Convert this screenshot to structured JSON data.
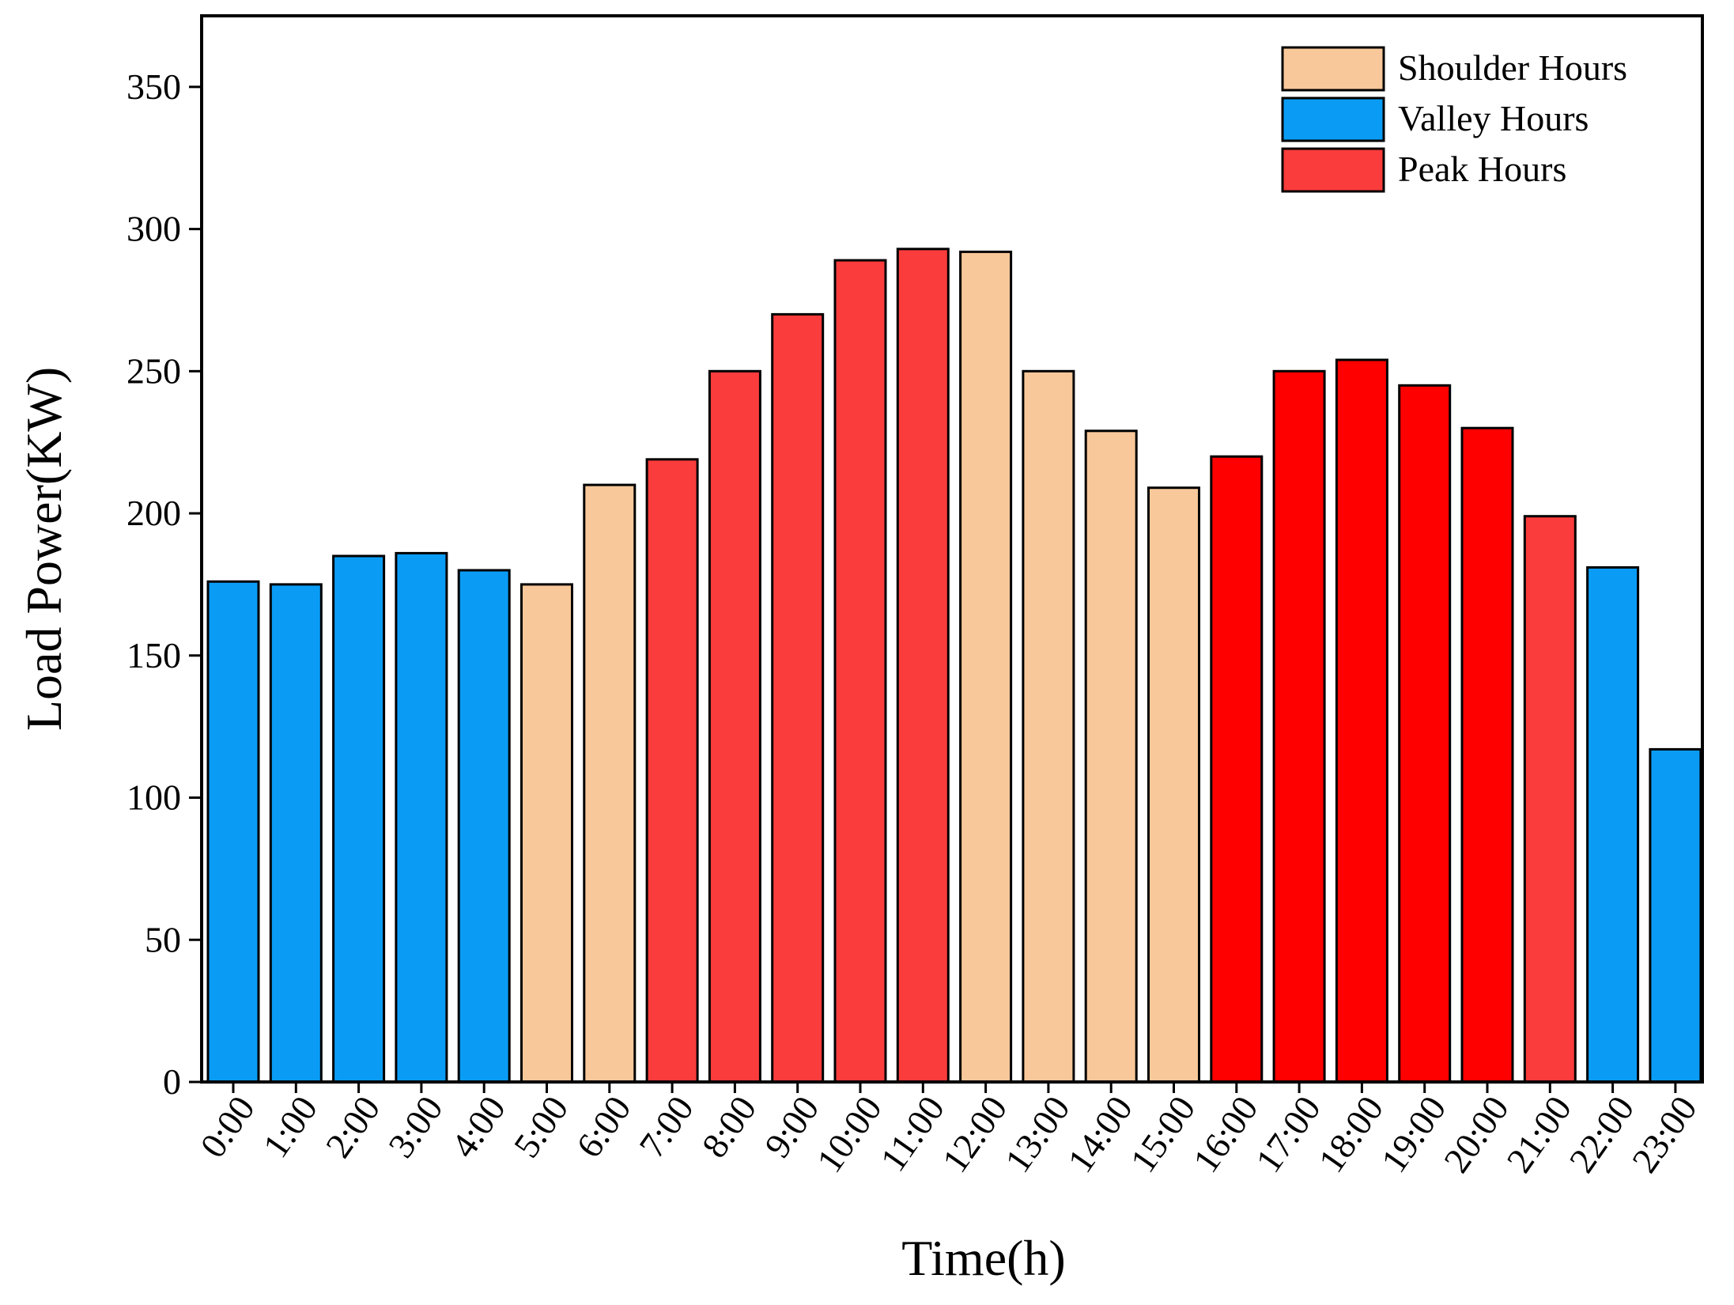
{
  "chart_data": {
    "type": "bar",
    "title": "",
    "xlabel": "Time(h)",
    "ylabel": "Load Power(KW)",
    "ylim": [
      0,
      375
    ],
    "yticks": [
      0,
      50,
      100,
      150,
      200,
      250,
      300,
      350
    ],
    "grid": false,
    "legend_position": "top-right",
    "categories": [
      "0:00",
      "1:00",
      "2:00",
      "3:00",
      "4:00",
      "5:00",
      "6:00",
      "7:00",
      "8:00",
      "9:00",
      "10:00",
      "11:00",
      "12:00",
      "13:00",
      "14:00",
      "15:00",
      "16:00",
      "17:00",
      "18:00",
      "19:00",
      "20:00",
      "21:00",
      "22:00",
      "23:00"
    ],
    "values": [
      176,
      175,
      185,
      186,
      180,
      175,
      210,
      219,
      250,
      270,
      289,
      293,
      292,
      250,
      229,
      209,
      220,
      250,
      254,
      245,
      230,
      199,
      181,
      117
    ],
    "period": [
      "valley",
      "valley",
      "valley",
      "valley",
      "valley",
      "shoulder",
      "shoulder",
      "peak",
      "peak",
      "peak",
      "peak",
      "peak",
      "shoulder",
      "shoulder",
      "shoulder",
      "shoulder",
      "peak2",
      "peak2",
      "peak2",
      "peak2",
      "peak2",
      "peak",
      "valley",
      "valley"
    ],
    "legend": [
      {
        "key": "shoulder",
        "label": "Shoulder Hours"
      },
      {
        "key": "valley",
        "label": "Valley Hours"
      },
      {
        "key": "peak",
        "label": "Peak Hours"
      }
    ],
    "colors": {
      "shoulder": "#f8c89a",
      "valley": "#0a9cf5",
      "peak": "#fa3c3c",
      "peak2": "#ff0000"
    }
  }
}
